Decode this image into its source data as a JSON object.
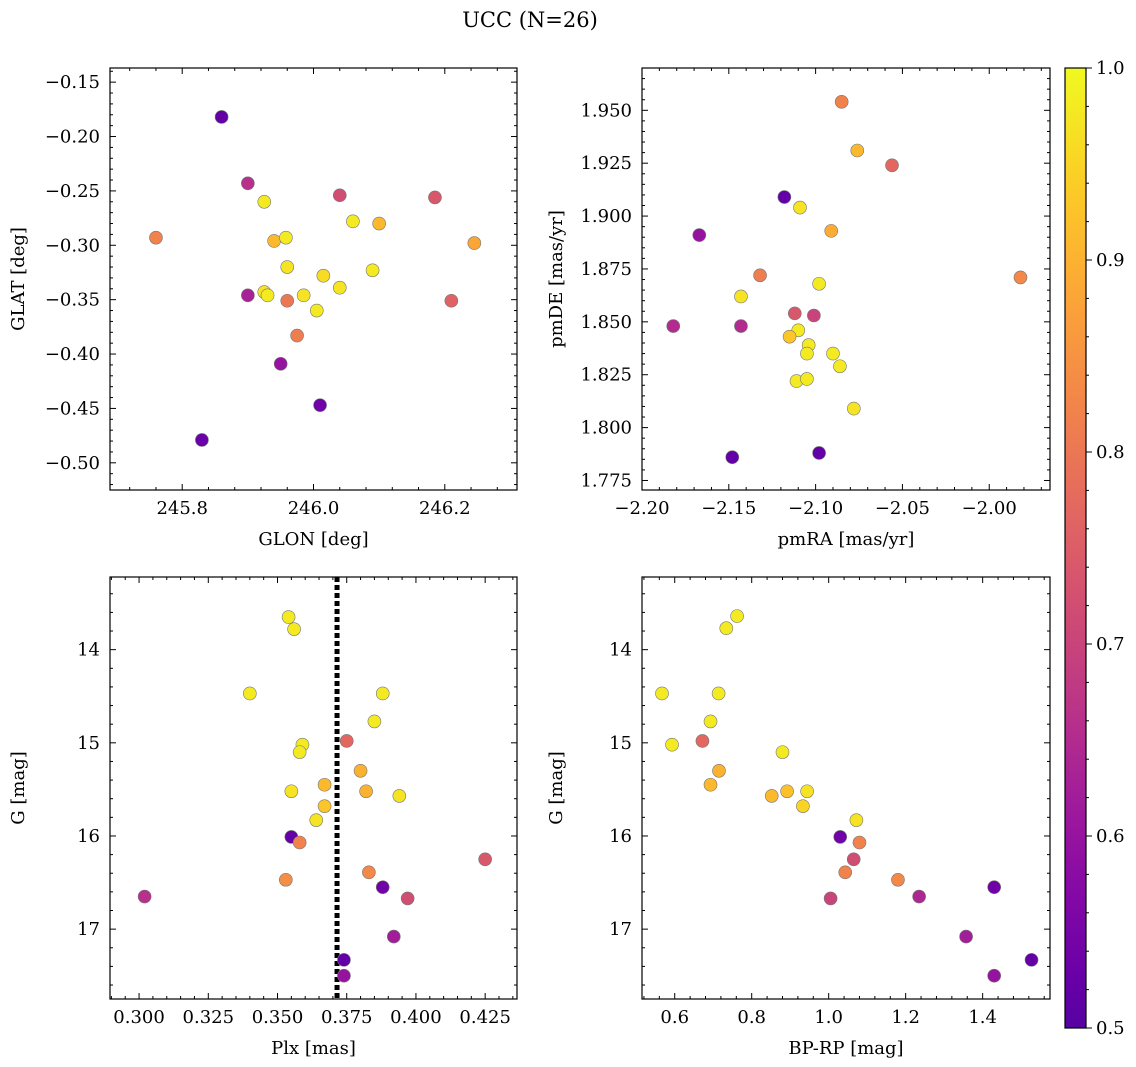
{
  "figure": {
    "title": "UCC (N=26)"
  },
  "colorbar": {
    "range": [
      0.5,
      1.0
    ],
    "ticks": [
      0.5,
      0.6,
      0.7,
      0.8,
      0.9,
      1.0
    ],
    "tick_labels": [
      "0.5",
      "0.6",
      "0.7",
      "0.8",
      "0.9",
      "1.0"
    ],
    "colormap": "plasma"
  },
  "chart_data": [
    {
      "type": "scatter",
      "title": "",
      "xlabel": "GLON [deg]",
      "ylabel": "GLAT [deg]",
      "xlim": [
        245.69,
        246.31
      ],
      "ylim": [
        -0.525,
        -0.137
      ],
      "xticks": [
        245.8,
        246.0,
        246.2
      ],
      "xtick_labels": [
        "245.8",
        "246.0",
        "246.2"
      ],
      "yticks": [
        -0.5,
        -0.45,
        -0.4,
        -0.35,
        -0.3,
        -0.25,
        -0.2,
        -0.15
      ],
      "ytick_labels": [
        "−0.50",
        "−0.45",
        "−0.40",
        "−0.35",
        "−0.30",
        "−0.25",
        "−0.20",
        "−0.15"
      ],
      "points": [
        {
          "x": 245.86,
          "y": -0.182,
          "c": 0.52
        },
        {
          "x": 245.9,
          "y": -0.243,
          "c": 0.66
        },
        {
          "x": 245.925,
          "y": -0.26,
          "c": 0.98
        },
        {
          "x": 246.04,
          "y": -0.254,
          "c": 0.72
        },
        {
          "x": 246.185,
          "y": -0.256,
          "c": 0.74
        },
        {
          "x": 246.06,
          "y": -0.278,
          "c": 0.98
        },
        {
          "x": 246.1,
          "y": -0.28,
          "c": 0.91
        },
        {
          "x": 245.76,
          "y": -0.293,
          "c": 0.82
        },
        {
          "x": 245.94,
          "y": -0.296,
          "c": 0.91
        },
        {
          "x": 245.958,
          "y": -0.293,
          "c": 0.98
        },
        {
          "x": 246.245,
          "y": -0.298,
          "c": 0.88
        },
        {
          "x": 245.96,
          "y": -0.32,
          "c": 0.97
        },
        {
          "x": 246.015,
          "y": -0.328,
          "c": 0.96
        },
        {
          "x": 246.09,
          "y": -0.323,
          "c": 0.98
        },
        {
          "x": 246.04,
          "y": -0.339,
          "c": 0.97
        },
        {
          "x": 245.925,
          "y": -0.343,
          "c": 0.97
        },
        {
          "x": 245.93,
          "y": -0.346,
          "c": 0.98
        },
        {
          "x": 245.9,
          "y": -0.346,
          "c": 0.63
        },
        {
          "x": 245.96,
          "y": -0.351,
          "c": 0.8
        },
        {
          "x": 245.985,
          "y": -0.346,
          "c": 0.97
        },
        {
          "x": 246.21,
          "y": -0.351,
          "c": 0.76
        },
        {
          "x": 246.005,
          "y": -0.36,
          "c": 0.98
        },
        {
          "x": 245.975,
          "y": -0.383,
          "c": 0.81
        },
        {
          "x": 245.95,
          "y": -0.409,
          "c": 0.6
        },
        {
          "x": 246.01,
          "y": -0.447,
          "c": 0.54
        },
        {
          "x": 245.83,
          "y": -0.479,
          "c": 0.53
        }
      ]
    },
    {
      "type": "scatter",
      "title": "",
      "xlabel": "pmRA [mas/yr]",
      "ylabel": "pmDE [mas/yr]",
      "xlim": [
        -2.2,
        -1.965
      ],
      "ylim": [
        1.7705,
        1.97
      ],
      "xticks": [
        -2.2,
        -2.15,
        -2.1,
        -2.05,
        -2.0
      ],
      "xtick_labels": [
        "−2.20",
        "−2.15",
        "−2.10",
        "−2.05",
        "−2.00"
      ],
      "yticks": [
        1.775,
        1.8,
        1.825,
        1.85,
        1.875,
        1.9,
        1.925,
        1.95
      ],
      "ytick_labels": [
        "1.775",
        "1.800",
        "1.825",
        "1.850",
        "1.875",
        "1.900",
        "1.925",
        "1.950"
      ],
      "points": [
        {
          "x": -2.085,
          "y": 1.954,
          "c": 0.82
        },
        {
          "x": -2.076,
          "y": 1.931,
          "c": 0.91
        },
        {
          "x": -2.056,
          "y": 1.924,
          "c": 0.77
        },
        {
          "x": -2.118,
          "y": 1.909,
          "c": 0.52
        },
        {
          "x": -2.109,
          "y": 1.904,
          "c": 0.97
        },
        {
          "x": -2.091,
          "y": 1.893,
          "c": 0.89
        },
        {
          "x": -2.167,
          "y": 1.891,
          "c": 0.6
        },
        {
          "x": -2.132,
          "y": 1.872,
          "c": 0.81
        },
        {
          "x": -2.098,
          "y": 1.868,
          "c": 0.98
        },
        {
          "x": -1.982,
          "y": 1.871,
          "c": 0.83
        },
        {
          "x": -2.143,
          "y": 1.862,
          "c": 0.97
        },
        {
          "x": -2.112,
          "y": 1.854,
          "c": 0.74
        },
        {
          "x": -2.101,
          "y": 1.853,
          "c": 0.7
        },
        {
          "x": -2.182,
          "y": 1.848,
          "c": 0.65
        },
        {
          "x": -2.143,
          "y": 1.848,
          "c": 0.65
        },
        {
          "x": -2.11,
          "y": 1.846,
          "c": 0.98
        },
        {
          "x": -2.115,
          "y": 1.843,
          "c": 0.93
        },
        {
          "x": -2.104,
          "y": 1.839,
          "c": 0.98
        },
        {
          "x": -2.105,
          "y": 1.835,
          "c": 0.98
        },
        {
          "x": -2.09,
          "y": 1.835,
          "c": 0.98
        },
        {
          "x": -2.086,
          "y": 1.829,
          "c": 0.98
        },
        {
          "x": -2.111,
          "y": 1.822,
          "c": 0.98
        },
        {
          "x": -2.105,
          "y": 1.823,
          "c": 0.98
        },
        {
          "x": -2.078,
          "y": 1.809,
          "c": 0.97
        },
        {
          "x": -2.148,
          "y": 1.786,
          "c": 0.52
        },
        {
          "x": -2.098,
          "y": 1.788,
          "c": 0.52
        }
      ]
    },
    {
      "type": "scatter",
      "title": "",
      "xlabel": "Plx [mas]",
      "ylabel": "G [mag]",
      "xlim": [
        0.2895,
        0.4365
      ],
      "ylim": [
        17.75,
        13.22
      ],
      "y_inverted": true,
      "vline": {
        "x": 0.3715,
        "style": "dotted",
        "color": "#000000"
      },
      "xticks": [
        0.3,
        0.325,
        0.35,
        0.375,
        0.4,
        0.425
      ],
      "xtick_labels": [
        "0.300",
        "0.325",
        "0.350",
        "0.375",
        "0.400",
        "0.425"
      ],
      "yticks": [
        14,
        15,
        16,
        17
      ],
      "ytick_labels": [
        "14",
        "15",
        "16",
        "17"
      ],
      "points": [
        {
          "x": 0.354,
          "y": 13.65,
          "c": 0.98
        },
        {
          "x": 0.356,
          "y": 13.78,
          "c": 0.98
        },
        {
          "x": 0.34,
          "y": 14.47,
          "c": 0.98
        },
        {
          "x": 0.388,
          "y": 14.47,
          "c": 0.98
        },
        {
          "x": 0.385,
          "y": 14.77,
          "c": 0.98
        },
        {
          "x": 0.375,
          "y": 14.98,
          "c": 0.77
        },
        {
          "x": 0.359,
          "y": 15.02,
          "c": 0.98
        },
        {
          "x": 0.358,
          "y": 15.1,
          "c": 0.98
        },
        {
          "x": 0.38,
          "y": 15.3,
          "c": 0.9
        },
        {
          "x": 0.367,
          "y": 15.45,
          "c": 0.91
        },
        {
          "x": 0.355,
          "y": 15.52,
          "c": 0.97
        },
        {
          "x": 0.382,
          "y": 15.52,
          "c": 0.9
        },
        {
          "x": 0.394,
          "y": 15.57,
          "c": 0.97
        },
        {
          "x": 0.367,
          "y": 15.68,
          "c": 0.93
        },
        {
          "x": 0.364,
          "y": 15.83,
          "c": 0.97
        },
        {
          "x": 0.355,
          "y": 16.01,
          "c": 0.52
        },
        {
          "x": 0.358,
          "y": 16.07,
          "c": 0.82
        },
        {
          "x": 0.425,
          "y": 16.25,
          "c": 0.74
        },
        {
          "x": 0.383,
          "y": 16.39,
          "c": 0.83
        },
        {
          "x": 0.353,
          "y": 16.47,
          "c": 0.84
        },
        {
          "x": 0.388,
          "y": 16.55,
          "c": 0.54
        },
        {
          "x": 0.302,
          "y": 16.65,
          "c": 0.66
        },
        {
          "x": 0.397,
          "y": 16.67,
          "c": 0.72
        },
        {
          "x": 0.392,
          "y": 17.08,
          "c": 0.62
        },
        {
          "x": 0.374,
          "y": 17.33,
          "c": 0.52
        },
        {
          "x": 0.374,
          "y": 17.5,
          "c": 0.6
        }
      ]
    },
    {
      "type": "scatter",
      "title": "",
      "xlabel": "BP-RP [mag]",
      "ylabel": "G [mag]",
      "xlim": [
        0.515,
        1.575
      ],
      "ylim": [
        17.75,
        13.22
      ],
      "y_inverted": true,
      "xticks": [
        0.6,
        0.8,
        1.0,
        1.2,
        1.4
      ],
      "xtick_labels": [
        "0.6",
        "0.8",
        "1.0",
        "1.2",
        "1.4"
      ],
      "yticks": [
        14,
        15,
        16,
        17
      ],
      "ytick_labels": [
        "14",
        "15",
        "16",
        "17"
      ],
      "points": [
        {
          "x": 0.762,
          "y": 13.64,
          "c": 0.98
        },
        {
          "x": 0.734,
          "y": 13.77,
          "c": 0.98
        },
        {
          "x": 0.567,
          "y": 14.47,
          "c": 0.98
        },
        {
          "x": 0.714,
          "y": 14.47,
          "c": 0.98
        },
        {
          "x": 0.693,
          "y": 14.77,
          "c": 0.98
        },
        {
          "x": 0.593,
          "y": 15.02,
          "c": 0.98
        },
        {
          "x": 0.672,
          "y": 14.98,
          "c": 0.77
        },
        {
          "x": 0.88,
          "y": 15.1,
          "c": 0.98
        },
        {
          "x": 0.715,
          "y": 15.3,
          "c": 0.9
        },
        {
          "x": 0.693,
          "y": 15.45,
          "c": 0.91
        },
        {
          "x": 0.852,
          "y": 15.57,
          "c": 0.91
        },
        {
          "x": 0.892,
          "y": 15.52,
          "c": 0.92
        },
        {
          "x": 0.944,
          "y": 15.52,
          "c": 0.97
        },
        {
          "x": 0.933,
          "y": 15.68,
          "c": 0.95
        },
        {
          "x": 1.072,
          "y": 15.83,
          "c": 0.97
        },
        {
          "x": 1.03,
          "y": 16.01,
          "c": 0.54
        },
        {
          "x": 1.08,
          "y": 16.07,
          "c": 0.82
        },
        {
          "x": 1.065,
          "y": 16.25,
          "c": 0.72
        },
        {
          "x": 1.043,
          "y": 16.39,
          "c": 0.82
        },
        {
          "x": 1.18,
          "y": 16.47,
          "c": 0.83
        },
        {
          "x": 1.43,
          "y": 16.55,
          "c": 0.54
        },
        {
          "x": 1.235,
          "y": 16.65,
          "c": 0.64
        },
        {
          "x": 1.005,
          "y": 16.67,
          "c": 0.7
        },
        {
          "x": 1.357,
          "y": 17.08,
          "c": 0.62
        },
        {
          "x": 1.527,
          "y": 17.33,
          "c": 0.52
        },
        {
          "x": 1.43,
          "y": 17.5,
          "c": 0.6
        }
      ]
    }
  ]
}
